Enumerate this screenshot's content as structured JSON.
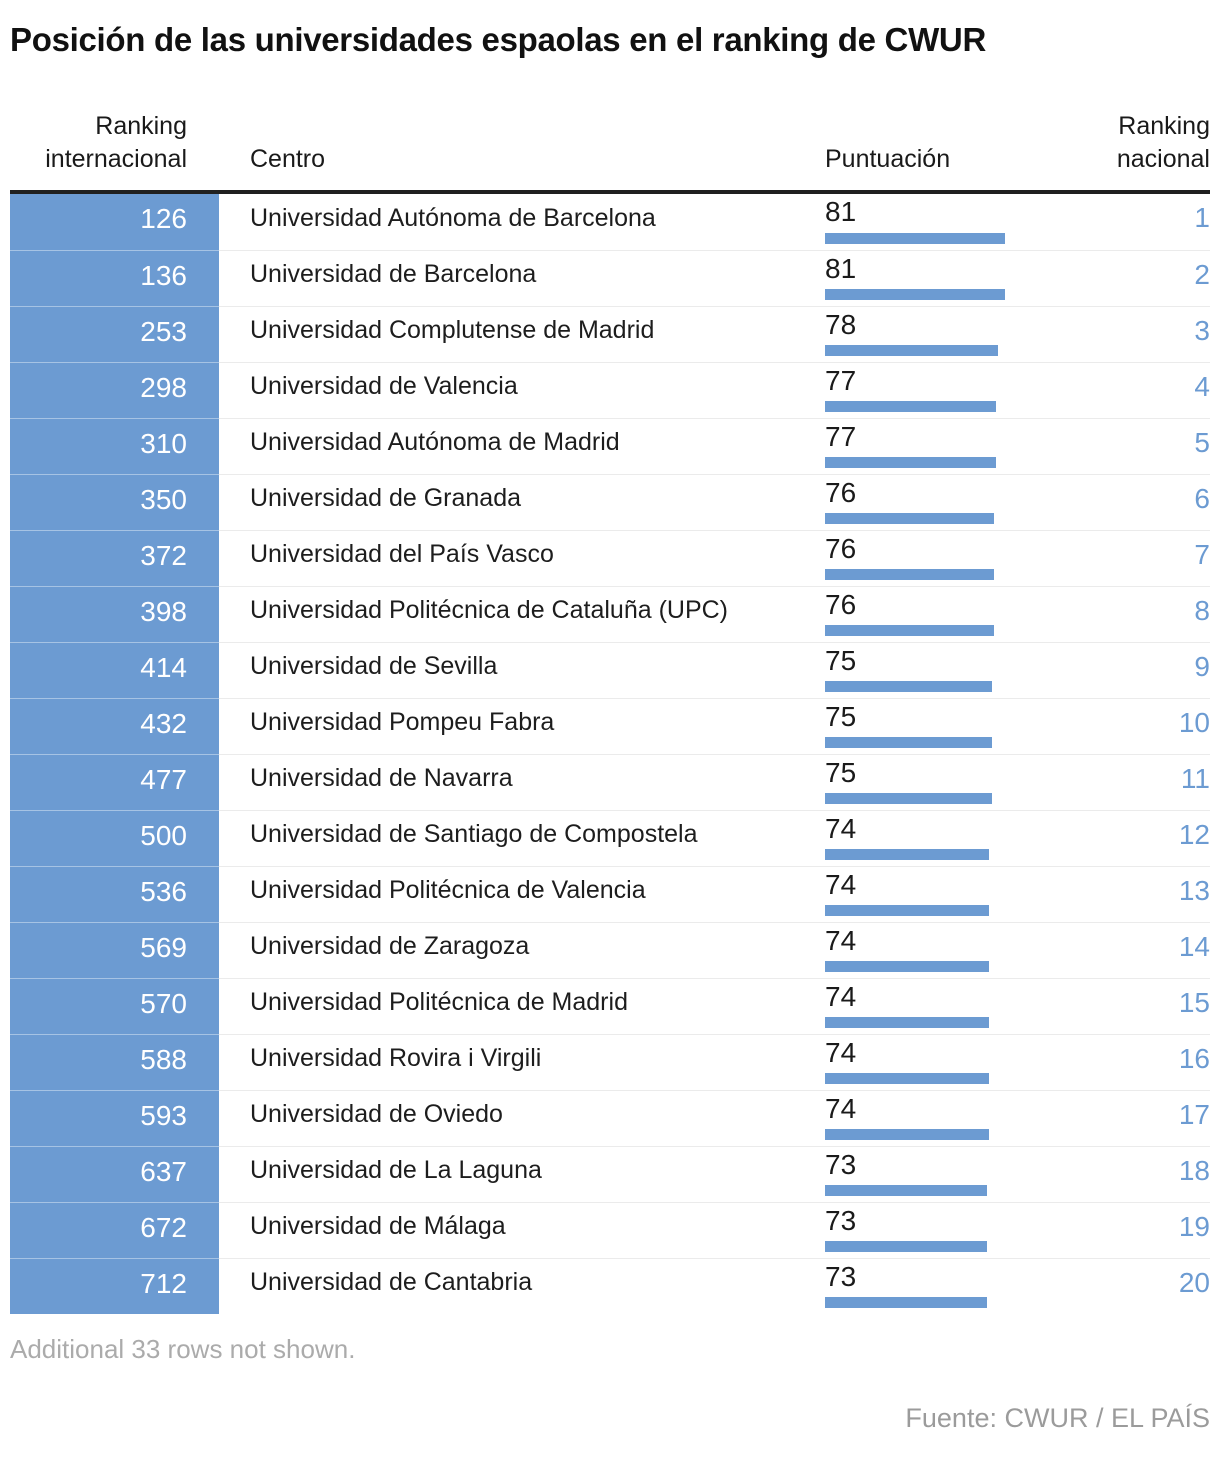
{
  "title": "Posición de las universidades espaolas en el ranking de CWUR",
  "header": {
    "col_intl": "Ranking internacional",
    "col_centro": "Centro",
    "col_puntuacion": "Puntuación",
    "col_nacional": "Ranking nacional"
  },
  "footnote": "Additional 33 rows not shown.",
  "source": "Fuente: CWUR / EL PAÍS",
  "colors": {
    "accent_blue": "#6C9BD2",
    "header_rule": "#202020",
    "row_separator": "#EBEBEB",
    "footnote_text": "#ABABAB",
    "source_text": "#9B9B9B"
  },
  "chart_data": {
    "type": "table",
    "title": "Posición de las universidades espaolas en el ranking de CWUR",
    "columns": [
      "Ranking internacional",
      "Centro",
      "Puntuación",
      "Ranking nacional"
    ],
    "bar_column": "Puntuación",
    "bar_axis_range": [
      0,
      100
    ],
    "rows": [
      {
        "ranking_internacional": 126,
        "centro": "Universidad Autónoma de Barcelona",
        "puntuacion": 81,
        "ranking_nacional": 1
      },
      {
        "ranking_internacional": 136,
        "centro": "Universidad de Barcelona",
        "puntuacion": 81,
        "ranking_nacional": 2
      },
      {
        "ranking_internacional": 253,
        "centro": "Universidad Complutense de Madrid",
        "puntuacion": 78,
        "ranking_nacional": 3
      },
      {
        "ranking_internacional": 298,
        "centro": "Universidad de Valencia",
        "puntuacion": 77,
        "ranking_nacional": 4
      },
      {
        "ranking_internacional": 310,
        "centro": "Universidad Autónoma de Madrid",
        "puntuacion": 77,
        "ranking_nacional": 5
      },
      {
        "ranking_internacional": 350,
        "centro": "Universidad de Granada",
        "puntuacion": 76,
        "ranking_nacional": 6
      },
      {
        "ranking_internacional": 372,
        "centro": "Universidad del País Vasco",
        "puntuacion": 76,
        "ranking_nacional": 7
      },
      {
        "ranking_internacional": 398,
        "centro": "Universidad Politécnica de Cataluña (UPC)",
        "puntuacion": 76,
        "ranking_nacional": 8
      },
      {
        "ranking_internacional": 414,
        "centro": "Universidad de Sevilla",
        "puntuacion": 75,
        "ranking_nacional": 9
      },
      {
        "ranking_internacional": 432,
        "centro": "Universidad Pompeu Fabra",
        "puntuacion": 75,
        "ranking_nacional": 10
      },
      {
        "ranking_internacional": 477,
        "centro": "Universidad de Navarra",
        "puntuacion": 75,
        "ranking_nacional": 11
      },
      {
        "ranking_internacional": 500,
        "centro": "Universidad de Santiago de Compostela",
        "puntuacion": 74,
        "ranking_nacional": 12
      },
      {
        "ranking_internacional": 536,
        "centro": "Universidad Politécnica de Valencia",
        "puntuacion": 74,
        "ranking_nacional": 13
      },
      {
        "ranking_internacional": 569,
        "centro": "Universidad de Zaragoza",
        "puntuacion": 74,
        "ranking_nacional": 14
      },
      {
        "ranking_internacional": 570,
        "centro": "Universidad Politécnica de Madrid",
        "puntuacion": 74,
        "ranking_nacional": 15
      },
      {
        "ranking_internacional": 588,
        "centro": "Universidad Rovira i Virgili",
        "puntuacion": 74,
        "ranking_nacional": 16
      },
      {
        "ranking_internacional": 593,
        "centro": "Universidad de Oviedo",
        "puntuacion": 74,
        "ranking_nacional": 17
      },
      {
        "ranking_internacional": 637,
        "centro": "Universidad de La Laguna",
        "puntuacion": 73,
        "ranking_nacional": 18
      },
      {
        "ranking_internacional": 672,
        "centro": "Universidad de Málaga",
        "puntuacion": 73,
        "ranking_nacional": 19
      },
      {
        "ranking_internacional": 712,
        "centro": "Universidad de Cantabria",
        "puntuacion": 73,
        "ranking_nacional": 20
      }
    ]
  }
}
